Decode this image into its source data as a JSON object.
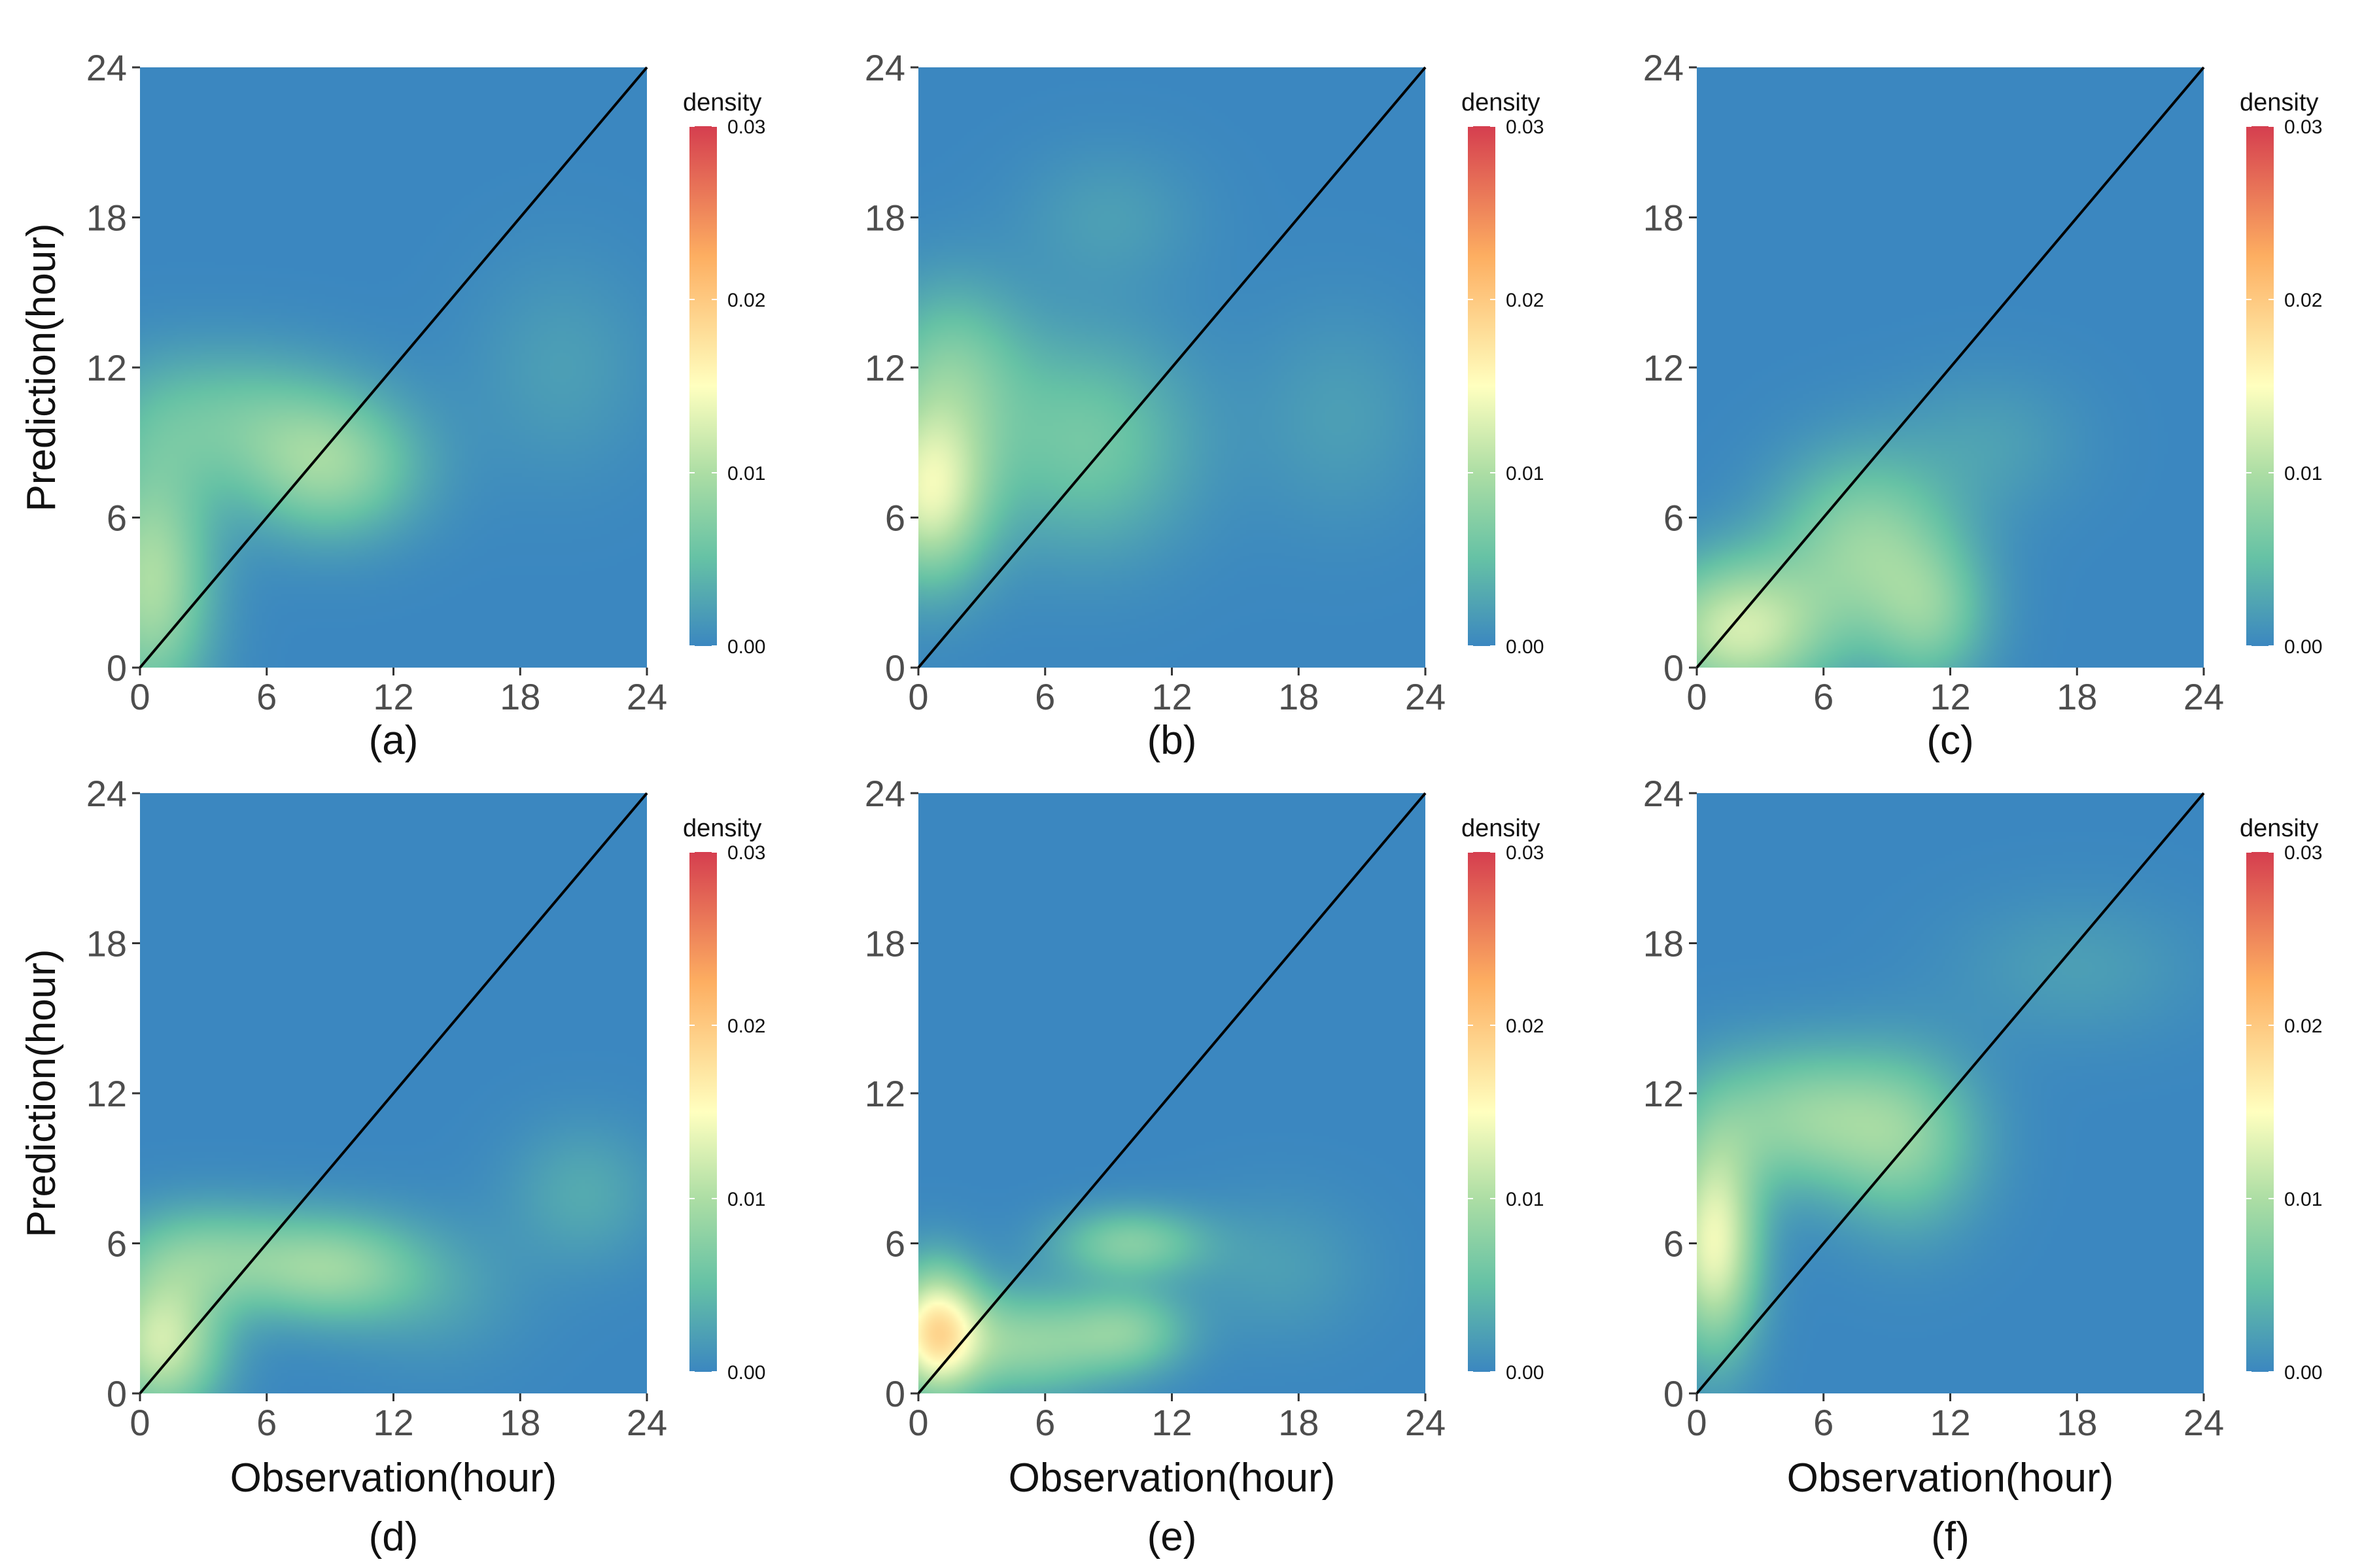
{
  "colors": {
    "low": "#3b87c0",
    "mid_low": "#66c2a5",
    "mid": "#abdda4",
    "center": "#ffffbf",
    "mid_high": "#fdae61",
    "high": "#d53e4f",
    "diagonal": "#000000"
  },
  "chart_data": [
    {
      "type": "heatmap",
      "caption": "(a)",
      "xlabel": "",
      "ylabel": "Prediction(hour)",
      "xlim": [
        0,
        24
      ],
      "ylim": [
        0,
        24
      ],
      "xticks": [
        "0",
        "6",
        "12",
        "18",
        "24"
      ],
      "yticks": [
        "0",
        "6",
        "12",
        "18",
        "24"
      ],
      "legend": {
        "title": "density",
        "ticks": [
          "0.00",
          "0.01",
          "0.02",
          "0.03"
        ],
        "range": [
          0,
          0.03
        ],
        "position": "right"
      },
      "reference_line": "y = x",
      "density_peaks": [
        {
          "x": 0.5,
          "y": 3.5,
          "sx": 2.0,
          "sy": 3.5,
          "value": 0.01
        },
        {
          "x": 9.0,
          "y": 8.0,
          "sx": 3.0,
          "sy": 2.0,
          "value": 0.008
        },
        {
          "x": 4.0,
          "y": 10.0,
          "sx": 4.0,
          "sy": 2.0,
          "value": 0.005
        },
        {
          "x": 20.0,
          "y": 12.0,
          "sx": 3.0,
          "sy": 3.0,
          "value": 0.002
        }
      ]
    },
    {
      "type": "heatmap",
      "caption": "(b)",
      "xlabel": "",
      "ylabel": "",
      "xlim": [
        0,
        24
      ],
      "ylim": [
        0,
        24
      ],
      "xticks": [
        "0",
        "6",
        "12",
        "18",
        "24"
      ],
      "yticks": [
        "0",
        "6",
        "12",
        "18",
        "24"
      ],
      "legend": {
        "title": "density",
        "ticks": [
          "0.00",
          "0.01",
          "0.02",
          "0.03"
        ],
        "range": [
          0,
          0.03
        ],
        "position": "right"
      },
      "reference_line": "y = x",
      "density_peaks": [
        {
          "x": 0.5,
          "y": 7.0,
          "sx": 2.0,
          "sy": 2.5,
          "value": 0.013
        },
        {
          "x": 8.0,
          "y": 9.0,
          "sx": 3.5,
          "sy": 3.0,
          "value": 0.006
        },
        {
          "x": 1.5,
          "y": 12.0,
          "sx": 2.5,
          "sy": 2.5,
          "value": 0.006
        },
        {
          "x": 9.0,
          "y": 18.0,
          "sx": 3.0,
          "sy": 2.0,
          "value": 0.002
        },
        {
          "x": 20.0,
          "y": 10.0,
          "sx": 3.0,
          "sy": 3.0,
          "value": 0.002
        }
      ]
    },
    {
      "type": "heatmap",
      "caption": "(c)",
      "xlabel": "",
      "ylabel": "",
      "xlim": [
        0,
        24
      ],
      "ylim": [
        0,
        24
      ],
      "xticks": [
        "0",
        "6",
        "12",
        "18",
        "24"
      ],
      "yticks": [
        "0",
        "6",
        "12",
        "18",
        "24"
      ],
      "legend": {
        "title": "density",
        "ticks": [
          "0.00",
          "0.01",
          "0.02",
          "0.03"
        ],
        "range": [
          0,
          0.03
        ],
        "position": "right"
      },
      "reference_line": "y = x",
      "density_peaks": [
        {
          "x": 2.0,
          "y": 1.5,
          "sx": 3.0,
          "sy": 2.0,
          "value": 0.012
        },
        {
          "x": 8.0,
          "y": 5.0,
          "sx": 3.0,
          "sy": 2.5,
          "value": 0.008
        },
        {
          "x": 11.0,
          "y": 2.0,
          "sx": 2.0,
          "sy": 2.0,
          "value": 0.006
        },
        {
          "x": 14.0,
          "y": 9.0,
          "sx": 3.0,
          "sy": 2.0,
          "value": 0.002
        }
      ]
    },
    {
      "type": "heatmap",
      "caption": "(d)",
      "xlabel": "Observation(hour)",
      "ylabel": "Prediction(hour)",
      "xlim": [
        0,
        24
      ],
      "ylim": [
        0,
        24
      ],
      "xticks": [
        "0",
        "6",
        "12",
        "18",
        "24"
      ],
      "yticks": [
        "0",
        "6",
        "12",
        "18",
        "24"
      ],
      "legend": {
        "title": "density",
        "ticks": [
          "0.00",
          "0.01",
          "0.02",
          "0.03"
        ],
        "range": [
          0,
          0.03
        ],
        "position": "right"
      },
      "reference_line": "y = x",
      "density_peaks": [
        {
          "x": 1.0,
          "y": 2.0,
          "sx": 2.0,
          "sy": 2.0,
          "value": 0.012
        },
        {
          "x": 9.0,
          "y": 5.0,
          "sx": 3.0,
          "sy": 1.5,
          "value": 0.008
        },
        {
          "x": 3.0,
          "y": 5.5,
          "sx": 3.0,
          "sy": 1.5,
          "value": 0.006
        },
        {
          "x": 21.0,
          "y": 8.0,
          "sx": 2.5,
          "sy": 2.0,
          "value": 0.003
        },
        {
          "x": 14.0,
          "y": 4.0,
          "sx": 3.0,
          "sy": 2.0,
          "value": 0.002
        }
      ]
    },
    {
      "type": "heatmap",
      "caption": "(e)",
      "xlabel": "Observation(hour)",
      "ylabel": "",
      "xlim": [
        0,
        24
      ],
      "ylim": [
        0,
        24
      ],
      "xticks": [
        "0",
        "6",
        "12",
        "18",
        "24"
      ],
      "yticks": [
        "0",
        "6",
        "12",
        "18",
        "24"
      ],
      "legend": {
        "title": "density",
        "ticks": [
          "0.00",
          "0.01",
          "0.02",
          "0.03"
        ],
        "range": [
          0,
          0.03
        ],
        "position": "right"
      },
      "reference_line": "y = x",
      "density_peaks": [
        {
          "x": 0.8,
          "y": 2.5,
          "sx": 1.5,
          "sy": 1.8,
          "value": 0.016
        },
        {
          "x": 5.0,
          "y": 2.0,
          "sx": 3.0,
          "sy": 1.5,
          "value": 0.008
        },
        {
          "x": 10.0,
          "y": 6.0,
          "sx": 2.5,
          "sy": 1.0,
          "value": 0.007
        },
        {
          "x": 10.0,
          "y": 2.5,
          "sx": 2.0,
          "sy": 1.2,
          "value": 0.006
        },
        {
          "x": 17.0,
          "y": 5.0,
          "sx": 3.0,
          "sy": 2.0,
          "value": 0.002
        }
      ]
    },
    {
      "type": "heatmap",
      "caption": "(f)",
      "xlabel": "Observation(hour)",
      "ylabel": "",
      "xlim": [
        0,
        24
      ],
      "ylim": [
        0,
        24
      ],
      "xticks": [
        "0",
        "6",
        "12",
        "18",
        "24"
      ],
      "yticks": [
        "0",
        "6",
        "12",
        "18",
        "24"
      ],
      "legend": {
        "title": "density",
        "ticks": [
          "0.00",
          "0.01",
          "0.02",
          "0.03"
        ],
        "range": [
          0,
          0.03
        ],
        "position": "right"
      },
      "reference_line": "y = x",
      "density_peaks": [
        {
          "x": 0.8,
          "y": 6.0,
          "sx": 1.5,
          "sy": 3.0,
          "value": 0.014
        },
        {
          "x": 5.0,
          "y": 11.0,
          "sx": 3.5,
          "sy": 2.0,
          "value": 0.008
        },
        {
          "x": 10.0,
          "y": 10.0,
          "sx": 2.5,
          "sy": 2.5,
          "value": 0.006
        },
        {
          "x": 18.0,
          "y": 17.0,
          "sx": 4.0,
          "sy": 2.0,
          "value": 0.002
        }
      ]
    }
  ]
}
